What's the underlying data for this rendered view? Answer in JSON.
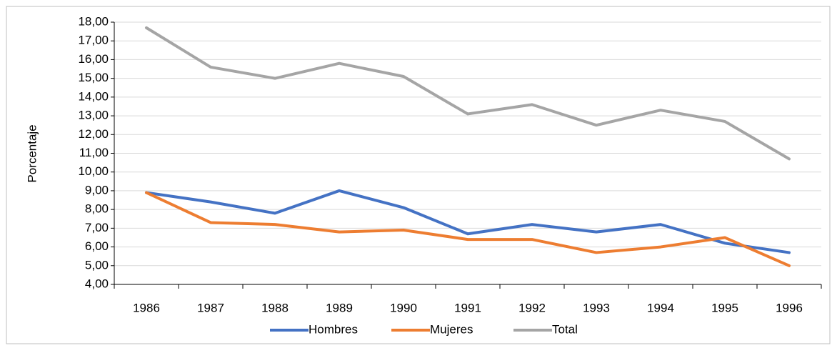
{
  "chart_data": {
    "type": "line",
    "y_label": "Porcentaje",
    "categories": [
      "1986",
      "1987",
      "1988",
      "1989",
      "1990",
      "1991",
      "1992",
      "1993",
      "1994",
      "1995",
      "1996"
    ],
    "series": [
      {
        "name": "Hombres",
        "color": "#4472c4",
        "values": [
          8.9,
          8.4,
          7.8,
          9.0,
          8.1,
          6.7,
          7.2,
          6.8,
          7.2,
          6.2,
          5.7
        ]
      },
      {
        "name": "Mujeres",
        "color": "#ed7d31",
        "values": [
          8.9,
          7.3,
          7.2,
          6.8,
          6.9,
          6.4,
          6.4,
          5.7,
          6.0,
          6.5,
          5.0
        ]
      },
      {
        "name": "Total",
        "color": "#a5a5a5",
        "values": [
          17.7,
          15.6,
          15.0,
          15.8,
          15.1,
          13.1,
          13.6,
          12.5,
          13.3,
          12.7,
          10.7
        ]
      }
    ],
    "ylim": [
      4,
      18
    ],
    "yticks": [
      {
        "value": 4,
        "label": "4,00"
      },
      {
        "value": 5,
        "label": "5,00"
      },
      {
        "value": 6,
        "label": "6,00"
      },
      {
        "value": 7,
        "label": "7,00"
      },
      {
        "value": 8,
        "label": "8,00"
      },
      {
        "value": 9,
        "label": "9,00"
      },
      {
        "value": 10,
        "label": "10,00"
      },
      {
        "value": 11,
        "label": "11,00"
      },
      {
        "value": 12,
        "label": "12,00"
      },
      {
        "value": 13,
        "label": "13,00"
      },
      {
        "value": 14,
        "label": "14,00"
      },
      {
        "value": 15,
        "label": "15,00"
      },
      {
        "value": 16,
        "label": "16,00"
      },
      {
        "value": 17,
        "label": "17,00"
      },
      {
        "value": 18,
        "label": "18,00"
      }
    ],
    "grid": true,
    "legend": "bottom"
  }
}
